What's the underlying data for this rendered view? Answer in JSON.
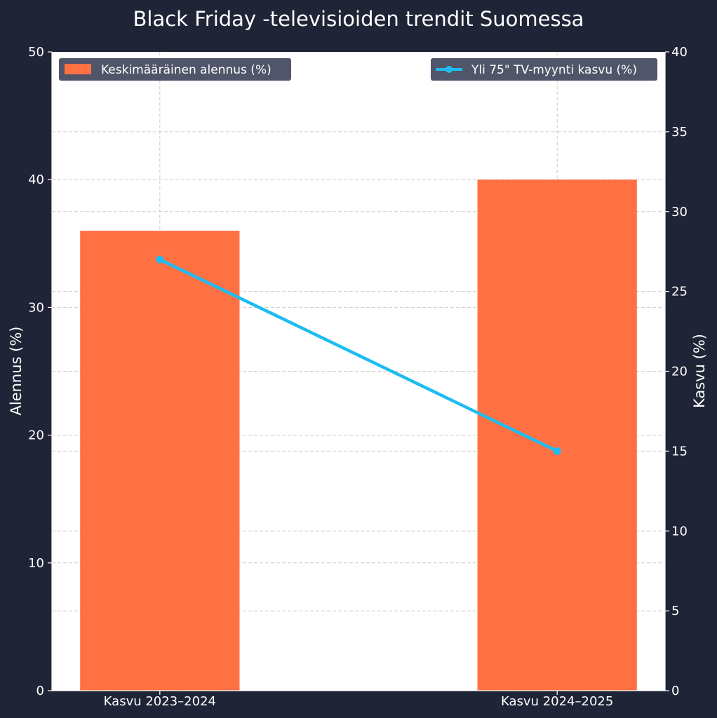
{
  "chart_data": {
    "type": "bar",
    "title": "Black Friday -televisioiden trendit Suomessa",
    "categories": [
      "Kasvu 2023–2024",
      "Kasvu 2024–2025"
    ],
    "series": [
      {
        "name": "Keskimääräinen alennus (%)",
        "type": "bar",
        "axis": "left",
        "values": [
          36,
          40
        ],
        "color": "#ff7043"
      },
      {
        "name": "Yli 75\" TV-myynti kasvu (%)",
        "type": "line",
        "axis": "right",
        "values": [
          27,
          15
        ],
        "color": "#1ebcf0"
      }
    ],
    "ylabel": "Alennus (%)",
    "ylabel_right": "Kasvu (%)",
    "ylim": [
      0,
      50
    ],
    "ylim_right": [
      0,
      40
    ],
    "yticks": [
      "0",
      "10",
      "20",
      "30",
      "40",
      "50"
    ],
    "yticks_right": [
      "0",
      "5",
      "10",
      "15",
      "20",
      "25",
      "30",
      "35",
      "40"
    ],
    "grid": true,
    "legend_bar_placement": "top-left",
    "legend_line_placement": "top-right",
    "colors": {
      "background": "#1f2436",
      "plot_background": "#ffffff",
      "text": "#ffffff",
      "legend_background": "#505569",
      "grid": "#cccccc"
    }
  }
}
